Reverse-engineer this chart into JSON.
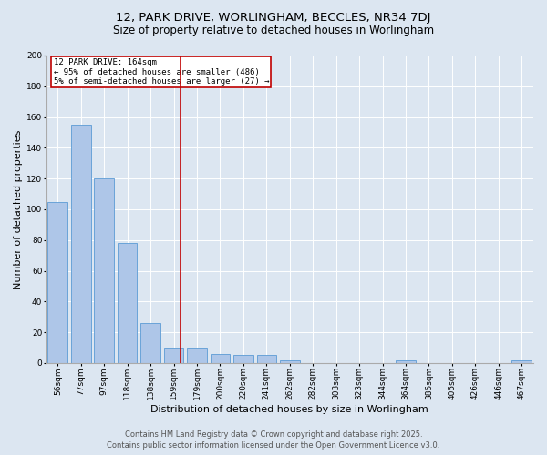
{
  "title_line1": "12, PARK DRIVE, WORLINGHAM, BECCLES, NR34 7DJ",
  "title_line2": "Size of property relative to detached houses in Worlingham",
  "xlabel": "Distribution of detached houses by size in Worlingham",
  "ylabel": "Number of detached properties",
  "annotation_title": "12 PARK DRIVE: 164sqm",
  "annotation_line2": "← 95% of detached houses are smaller (486)",
  "annotation_line3": "5% of semi-detached houses are larger (27) →",
  "categories": [
    "56sqm",
    "77sqm",
    "97sqm",
    "118sqm",
    "138sqm",
    "159sqm",
    "179sqm",
    "200sqm",
    "220sqm",
    "241sqm",
    "262sqm",
    "282sqm",
    "303sqm",
    "323sqm",
    "344sqm",
    "364sqm",
    "385sqm",
    "405sqm",
    "426sqm",
    "446sqm",
    "467sqm"
  ],
  "values": [
    105,
    155,
    120,
    78,
    26,
    10,
    10,
    6,
    5,
    5,
    2,
    0,
    0,
    0,
    0,
    2,
    0,
    0,
    0,
    0,
    2
  ],
  "bar_color": "#aec6e8",
  "bar_edge_color": "#5b9bd5",
  "highlight_color": "#c00000",
  "vline_x": 5.3,
  "bg_color": "#dce6f1",
  "plot_bg_color": "#dce6f1",
  "ylim": [
    0,
    200
  ],
  "yticks": [
    0,
    20,
    40,
    60,
    80,
    100,
    120,
    140,
    160,
    180,
    200
  ],
  "footer_line1": "Contains HM Land Registry data © Crown copyright and database right 2025.",
  "footer_line2": "Contains public sector information licensed under the Open Government Licence v3.0.",
  "title_fontsize": 9.5,
  "subtitle_fontsize": 8.5,
  "axis_label_fontsize": 8,
  "tick_fontsize": 6.5,
  "annotation_fontsize": 6.5,
  "footer_fontsize": 6
}
